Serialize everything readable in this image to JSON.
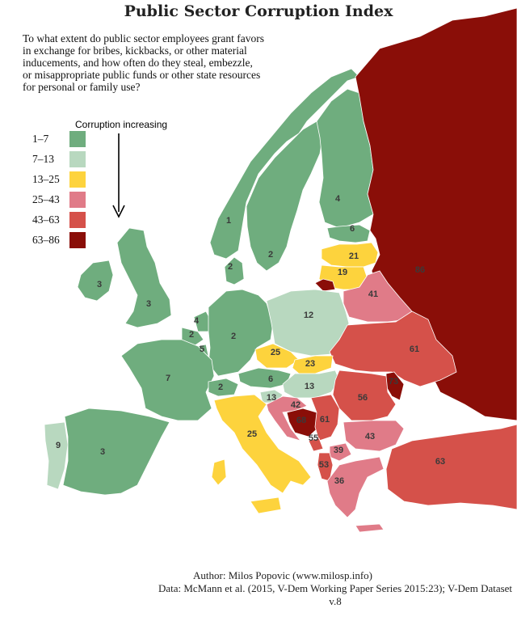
{
  "title": "Public Sector Corruption Index",
  "question": "To what extent do public sector employees grant favors\n in exchange for bribes, kickbacks, or other material\ninducements, and how often do they steal, embezzle,\nor misappropriate public funds or other state resources\nfor personal or family use?",
  "legend": {
    "title": "Corruption increasing",
    "items": [
      {
        "label": "1–7",
        "color": "#6fad7e"
      },
      {
        "label": "7–13",
        "color": "#b8d8bf"
      },
      {
        "label": "13–25",
        "color": "#fdd33d"
      },
      {
        "label": "25–43",
        "color": "#e07b88"
      },
      {
        "label": "43–63",
        "color": "#d5514a"
      },
      {
        "label": "63–86",
        "color": "#8a0e08"
      }
    ]
  },
  "colors": {
    "sea": "#ffffff",
    "border": "#ffffff",
    "arrow": "#000000"
  },
  "countries": [
    {
      "name": "Norway",
      "value": "1",
      "class": 0
    },
    {
      "name": "Sweden",
      "value": "2",
      "class": 0
    },
    {
      "name": "Finland",
      "value": "4",
      "class": 0
    },
    {
      "name": "Denmark",
      "value": "2",
      "class": 0
    },
    {
      "name": "Estonia",
      "value": "6",
      "class": 0
    },
    {
      "name": "Latvia",
      "value": "21",
      "class": 2
    },
    {
      "name": "Lithuania",
      "value": "19",
      "class": 2
    },
    {
      "name": "Russia",
      "value": "86",
      "class": 5
    },
    {
      "name": "Belarus",
      "value": "41",
      "class": 3
    },
    {
      "name": "Ireland",
      "value": "3",
      "class": 0
    },
    {
      "name": "United Kingdom",
      "value": "3",
      "class": 0
    },
    {
      "name": "Netherlands",
      "value": "4",
      "class": 0
    },
    {
      "name": "Belgium",
      "value": "2",
      "class": 0
    },
    {
      "name": "Luxembourg",
      "value": "5",
      "class": 0
    },
    {
      "name": "Germany",
      "value": "2",
      "class": 0
    },
    {
      "name": "Poland",
      "value": "12",
      "class": 1
    },
    {
      "name": "Ukraine",
      "value": "61",
      "class": 4
    },
    {
      "name": "France",
      "value": "7",
      "class": 0
    },
    {
      "name": "Czech Republic",
      "value": "25",
      "class": 2
    },
    {
      "name": "Slovakia",
      "value": "23",
      "class": 2
    },
    {
      "name": "Switzerland",
      "value": "2",
      "class": 0
    },
    {
      "name": "Austria",
      "value": "6",
      "class": 0
    },
    {
      "name": "Hungary",
      "value": "13",
      "class": 1
    },
    {
      "name": "Moldova",
      "value": "73",
      "class": 5
    },
    {
      "name": "Romania",
      "value": "56",
      "class": 4
    },
    {
      "name": "Slovenia",
      "value": "13",
      "class": 1
    },
    {
      "name": "Croatia",
      "value": "42",
      "class": 3
    },
    {
      "name": "Bosnia and Herzegovina",
      "value": "68",
      "class": 5
    },
    {
      "name": "Serbia",
      "value": "61",
      "class": 4
    },
    {
      "name": "Bulgaria",
      "value": "43",
      "class": 3
    },
    {
      "name": "North Macedonia",
      "value": "39",
      "class": 3
    },
    {
      "name": "Montenegro",
      "value": "55",
      "class": 4
    },
    {
      "name": "Albania",
      "value": "53",
      "class": 4
    },
    {
      "name": "Greece",
      "value": "36",
      "class": 3
    },
    {
      "name": "Italy",
      "value": "25",
      "class": 2
    },
    {
      "name": "Portugal",
      "value": "9",
      "class": 1
    },
    {
      "name": "Spain",
      "value": "3",
      "class": 0
    },
    {
      "name": "Turkey",
      "value": "63",
      "class": 4
    }
  ],
  "footer": {
    "author": "Author: Milos Popovic (www.milosp.info)",
    "source": "Data: McMann et al. (2015, V-Dem Working Paper Series 2015:23); V-Dem Dataset v.8"
  }
}
